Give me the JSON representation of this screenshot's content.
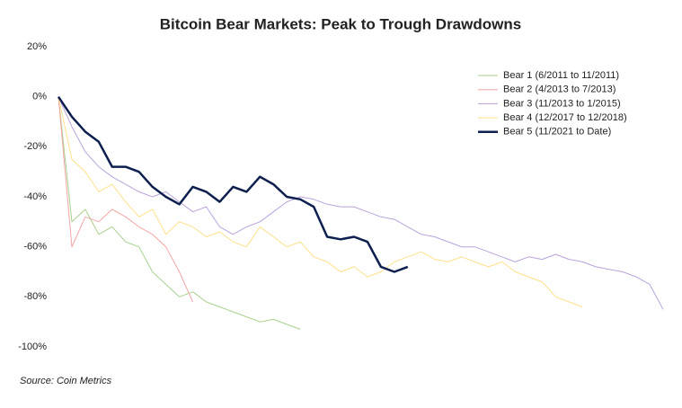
{
  "chart_data": {
    "type": "line",
    "title": "Bitcoin Bear Markets: Peak to Trough Drawdowns",
    "source": "Source: Coin Metrics",
    "ylim": [
      -100,
      20
    ],
    "yticks": [
      {
        "value": 20,
        "label": "20%"
      },
      {
        "value": 0,
        "label": "0%"
      },
      {
        "value": -20,
        "label": "-20%"
      },
      {
        "value": -40,
        "label": "-40%"
      },
      {
        "value": -60,
        "label": "-60%"
      },
      {
        "value": -80,
        "label": "-80%"
      },
      {
        "value": -100,
        "label": "-100%"
      }
    ],
    "grid": false,
    "legend": "top-right",
    "series": [
      {
        "name": "Bear 1 (6/2011 to 11/2011)",
        "color": "#a9d18e",
        "width": 1,
        "values": [
          0,
          -50,
          -45,
          -55,
          -52,
          -58,
          -60,
          -70,
          -75,
          -80,
          -78,
          -82,
          -84,
          -86,
          -88,
          -90,
          -89,
          -91,
          -93
        ]
      },
      {
        "name": "Bear 2 (4/2013 to 7/2013)",
        "color": "#f4a6a6",
        "width": 1,
        "values": [
          0,
          -60,
          -48,
          -50,
          -45,
          -48,
          -52,
          -55,
          -60,
          -70,
          -82
        ]
      },
      {
        "name": "Bear 3 (11/2013 to 1/2015)",
        "color": "#b9a3dc",
        "width": 1,
        "values": [
          0,
          -12,
          -22,
          -28,
          -32,
          -35,
          -38,
          -40,
          -38,
          -42,
          -46,
          -44,
          -52,
          -55,
          -52,
          -50,
          -46,
          -42,
          -40,
          -41,
          -43,
          -44,
          -44,
          -46,
          -48,
          -49,
          -52,
          -55,
          -56,
          -58,
          -60,
          -60,
          -62,
          -64,
          -66,
          -64,
          -65,
          -63,
          -65,
          -66,
          -68,
          -69,
          -70,
          -72,
          -75,
          -85
        ]
      },
      {
        "name": "Bear 4 (12/2017 to 12/2018)",
        "color": "#ffe08a",
        "width": 1,
        "values": [
          0,
          -25,
          -30,
          -38,
          -35,
          -42,
          -48,
          -45,
          -55,
          -50,
          -52,
          -56,
          -54,
          -58,
          -60,
          -52,
          -56,
          -60,
          -58,
          -64,
          -66,
          -70,
          -68,
          -72,
          -70,
          -66,
          -64,
          -62,
          -65,
          -66,
          -64,
          -66,
          -68,
          -66,
          -70,
          -72,
          -74,
          -80,
          -82,
          -84
        ]
      },
      {
        "name": "Bear 5 (11/2021 to Date)",
        "color": "#0d1f4f",
        "width": 2.5,
        "values": [
          0,
          -8,
          -14,
          -18,
          -28,
          -28,
          -30,
          -36,
          -40,
          -43,
          -36,
          -38,
          -42,
          -36,
          -38,
          -32,
          -35,
          -40,
          -41,
          -44,
          -56,
          -57,
          -56,
          -58,
          -68,
          -70,
          -68
        ]
      }
    ]
  }
}
